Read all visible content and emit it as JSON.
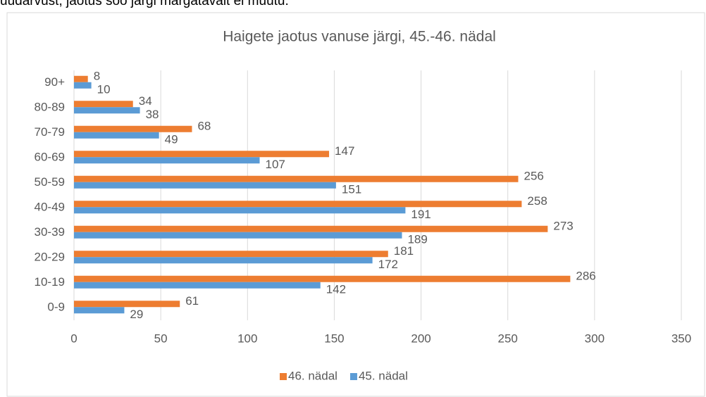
{
  "text_above": "uudarvust, jaotus soo järgi märgatavalt ei muutu.",
  "chart_data": {
    "type": "bar",
    "orientation": "horizontal",
    "title": "Haigete jaotus vanuse järgi, 45.-46. nädal",
    "categories": [
      "0-9",
      "10-19",
      "20-29",
      "30-39",
      "40-49",
      "50-59",
      "60-69",
      "70-79",
      "80-89",
      "90+"
    ],
    "series": [
      {
        "name": "46. nädal",
        "color": "#ed7d31",
        "values": [
          61,
          286,
          181,
          273,
          258,
          256,
          147,
          68,
          34,
          8
        ]
      },
      {
        "name": "45. nädal",
        "color": "#5b9bd5",
        "values": [
          29,
          142,
          172,
          189,
          191,
          151,
          107,
          49,
          38,
          10
        ]
      }
    ],
    "xlim": [
      0,
      350
    ],
    "xticks": [
      0,
      50,
      100,
      150,
      200,
      250,
      300,
      350
    ],
    "grid": true,
    "legend": "bottom"
  }
}
